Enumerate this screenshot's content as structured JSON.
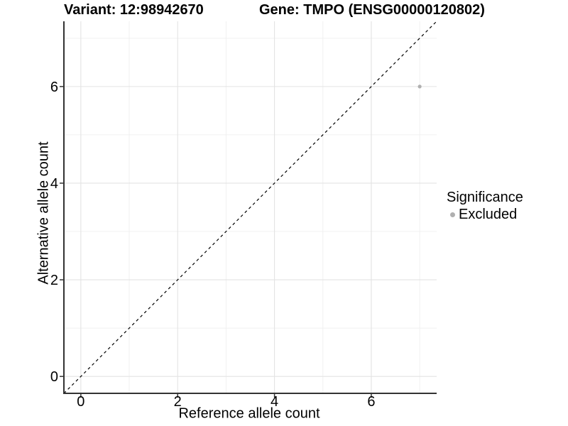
{
  "chart_data": {
    "type": "scatter",
    "titles": {
      "left": "Variant: 12:98942670",
      "right": "Gene: TMPO (ENSG00000120802)"
    },
    "xlabel": "Reference allele count",
    "ylabel": "Alternative allele count",
    "xlim": [
      -0.35,
      7.35
    ],
    "ylim": [
      -0.35,
      7.35
    ],
    "x_major_ticks": [
      0,
      2,
      4,
      6
    ],
    "y_major_ticks": [
      0,
      2,
      4,
      6
    ],
    "x_minor_gridlines": [
      1,
      3,
      5,
      7
    ],
    "y_minor_gridlines": [
      1,
      3,
      5,
      7
    ],
    "grid": "major+minor",
    "legend_position": "right",
    "reference_line": {
      "type": "identity",
      "style": "dashed",
      "color": "#000000",
      "from": [
        -0.35,
        -0.35
      ],
      "to": [
        7.35,
        7.35
      ]
    },
    "series": [
      {
        "name": "Excluded",
        "color": "#b0b0b0",
        "points": [
          {
            "x": 7,
            "y": 6
          }
        ]
      }
    ],
    "legend": {
      "title": "Significance",
      "entries": [
        {
          "label": "Excluded",
          "marker": "dot",
          "color": "#b0b0b0"
        }
      ]
    },
    "colors": {
      "background": "#ffffff",
      "major_grid": "#e3e3e3",
      "minor_grid": "#f0f0f0",
      "axis_line": "#333333",
      "tick_mark": "#333333",
      "text": "#000000"
    }
  }
}
